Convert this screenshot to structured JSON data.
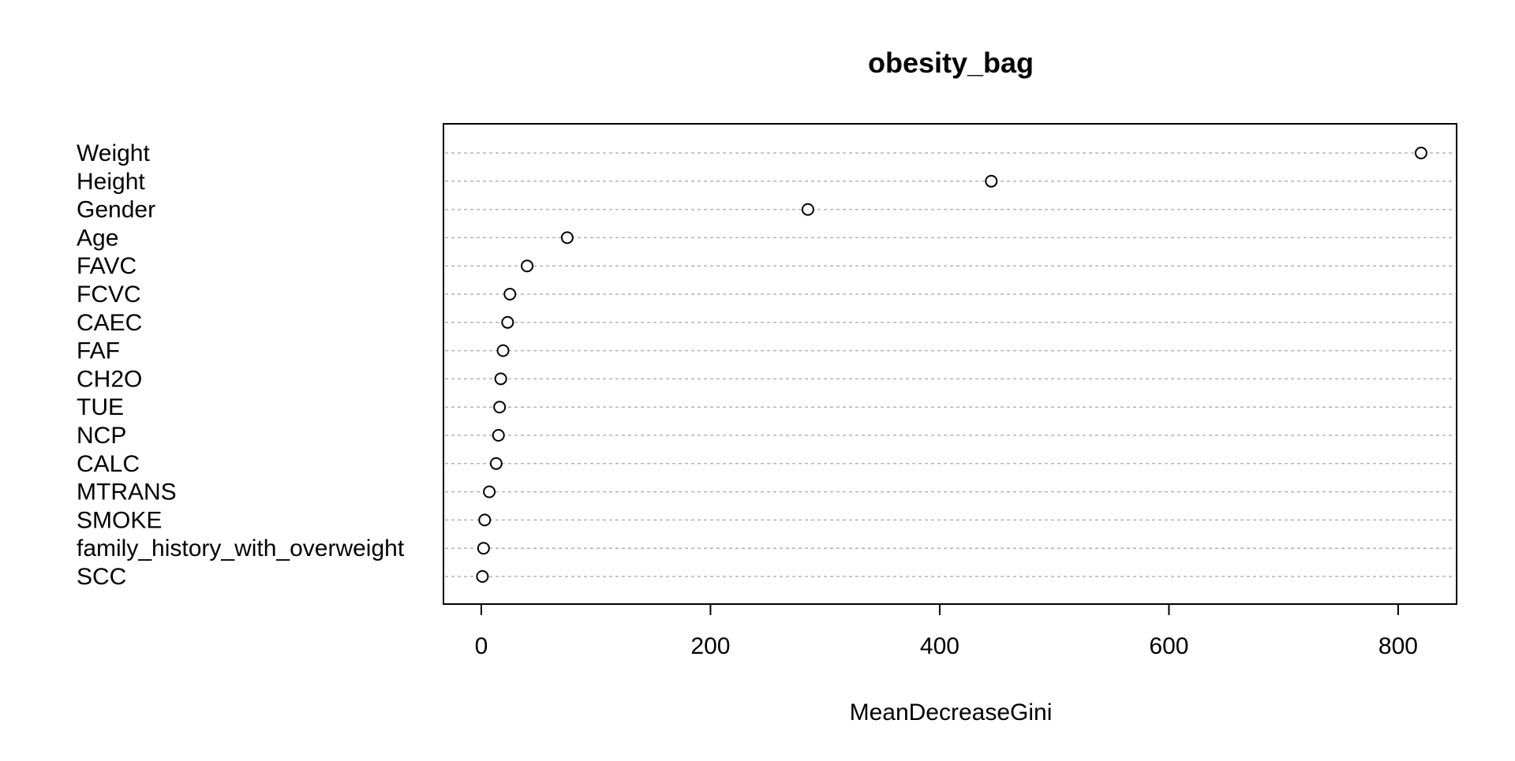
{
  "chart_data": {
    "type": "scatter",
    "subtype": "dotchart",
    "title": "obesity_bag",
    "xlabel": "MeanDecreaseGini",
    "ylabel": "",
    "xlim": [
      -33,
      851
    ],
    "xticks": [
      0,
      200,
      400,
      600,
      800
    ],
    "grid": "dashed horizontal guide lines",
    "legend": "none",
    "variables": [
      "Weight",
      "Height",
      "Gender",
      "Age",
      "FAVC",
      "FCVC",
      "CAEC",
      "FAF",
      "CH2O",
      "TUE",
      "NCP",
      "CALC",
      "MTRANS",
      "SMOKE",
      "family_history_with_overweight",
      "SCC"
    ],
    "values": [
      820,
      445,
      285,
      75,
      40,
      25,
      23,
      19,
      17,
      16,
      15,
      13,
      7,
      3,
      2,
      1
    ]
  },
  "colors": {
    "foreground": "#000000",
    "background": "#ffffff",
    "gridline": "#b3b3b3"
  }
}
